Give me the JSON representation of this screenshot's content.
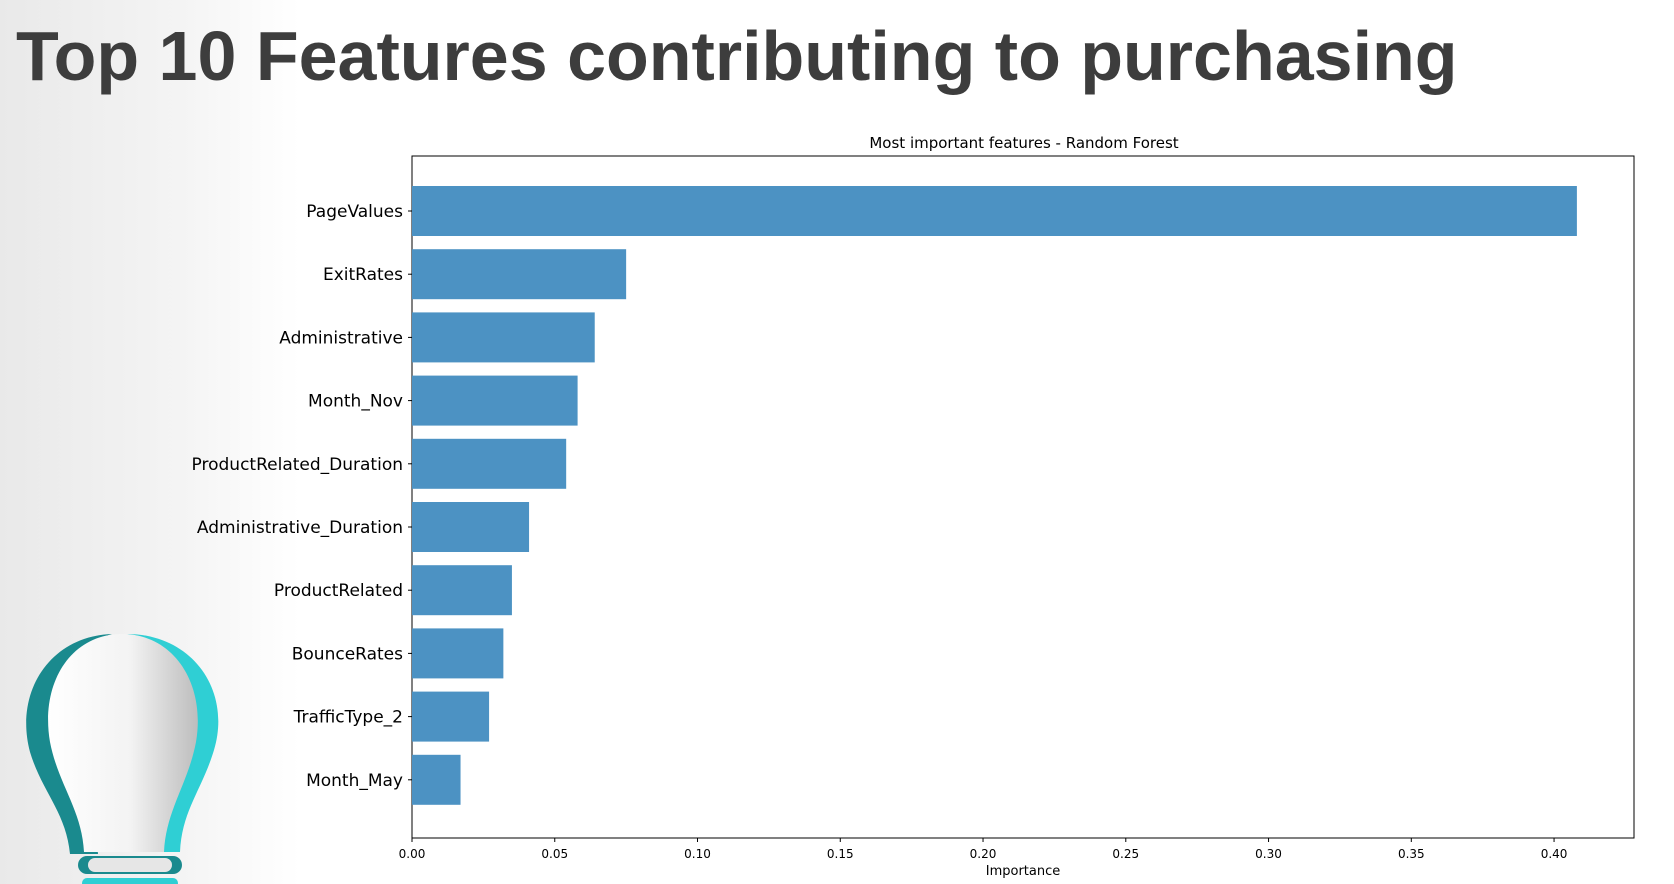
{
  "slide": {
    "title": "Top 10 Features contributing to purchasing"
  },
  "icons": {
    "decoration": "lightbulb-icon"
  },
  "colors": {
    "bar": "#4c92c3",
    "title_text": "#3d3d3d",
    "bulb_teal": "#2fcfd4",
    "bulb_dark_teal": "#1a8a8e"
  },
  "chart_data": {
    "type": "bar",
    "orientation": "horizontal",
    "title": "Most important features - Random Forest",
    "xlabel": "Importance",
    "ylabel": "",
    "xlim": [
      0,
      0.428
    ],
    "xticks": [
      "0.00",
      "0.05",
      "0.10",
      "0.15",
      "0.20",
      "0.25",
      "0.30",
      "0.35",
      "0.40"
    ],
    "grid": false,
    "categories": [
      "PageValues",
      "ExitRates",
      "Administrative",
      "Month_Nov",
      "ProductRelated_Duration",
      "Administrative_Duration",
      "ProductRelated",
      "BounceRates",
      "TrafficType_2",
      "Month_May"
    ],
    "values": [
      0.408,
      0.075,
      0.064,
      0.058,
      0.054,
      0.041,
      0.035,
      0.032,
      0.027,
      0.017
    ]
  }
}
